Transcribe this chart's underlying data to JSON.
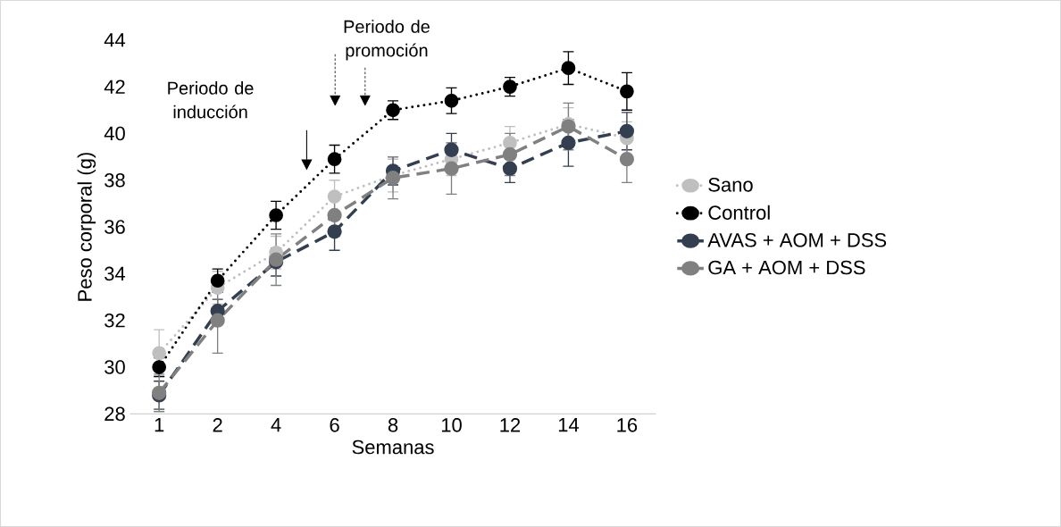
{
  "chart_data": {
    "type": "line",
    "xlabel": "Semanas",
    "ylabel": "Peso corporal (g)",
    "categories": [
      "1",
      "2",
      "4",
      "6",
      "8",
      "10",
      "12",
      "14",
      "16"
    ],
    "ylim": [
      28,
      44
    ],
    "yticks": [
      28,
      30,
      32,
      34,
      36,
      38,
      40,
      42,
      44
    ],
    "grid": false,
    "legend": "right",
    "marker": "circle",
    "annotations": [
      "Periodo de inducción",
      "Periodo de promoción"
    ],
    "series": [
      {
        "name": "Sano",
        "color": "#bfbfbf",
        "line_style": "dotted",
        "values": [
          30.6,
          33.4,
          34.9,
          37.3,
          38.2,
          38.9,
          39.6,
          40.4,
          39.8
        ],
        "errors": [
          1.0,
          0.7,
          0.7,
          0.7,
          0.7,
          0.7,
          0.7,
          0.7,
          0.7
        ]
      },
      {
        "name": "Control",
        "color": "#000000",
        "line_style": "dotted",
        "values": [
          30.0,
          33.7,
          36.5,
          38.9,
          41.0,
          41.4,
          42.0,
          42.8,
          41.8
        ],
        "errors": [
          0.4,
          0.5,
          0.6,
          0.6,
          0.4,
          0.55,
          0.4,
          0.7,
          0.8
        ]
      },
      {
        "name": "AVAS + AOM + DSS",
        "color": "#333f50",
        "line_style": "dashed",
        "values": [
          28.8,
          32.4,
          34.5,
          35.8,
          38.4,
          39.3,
          38.5,
          39.6,
          40.1
        ],
        "errors": [
          0.6,
          0.5,
          0.6,
          0.8,
          0.6,
          0.7,
          0.6,
          1.0,
          0.8
        ]
      },
      {
        "name": "GA + AOM + DSS",
        "color": "#808080",
        "line_style": "dashed",
        "values": [
          28.9,
          32.0,
          34.6,
          36.5,
          38.1,
          38.5,
          39.1,
          40.3,
          38.9
        ],
        "errors": [
          0.8,
          1.4,
          1.1,
          0.9,
          0.9,
          1.1,
          0.9,
          1.0,
          1.0
        ]
      }
    ]
  }
}
